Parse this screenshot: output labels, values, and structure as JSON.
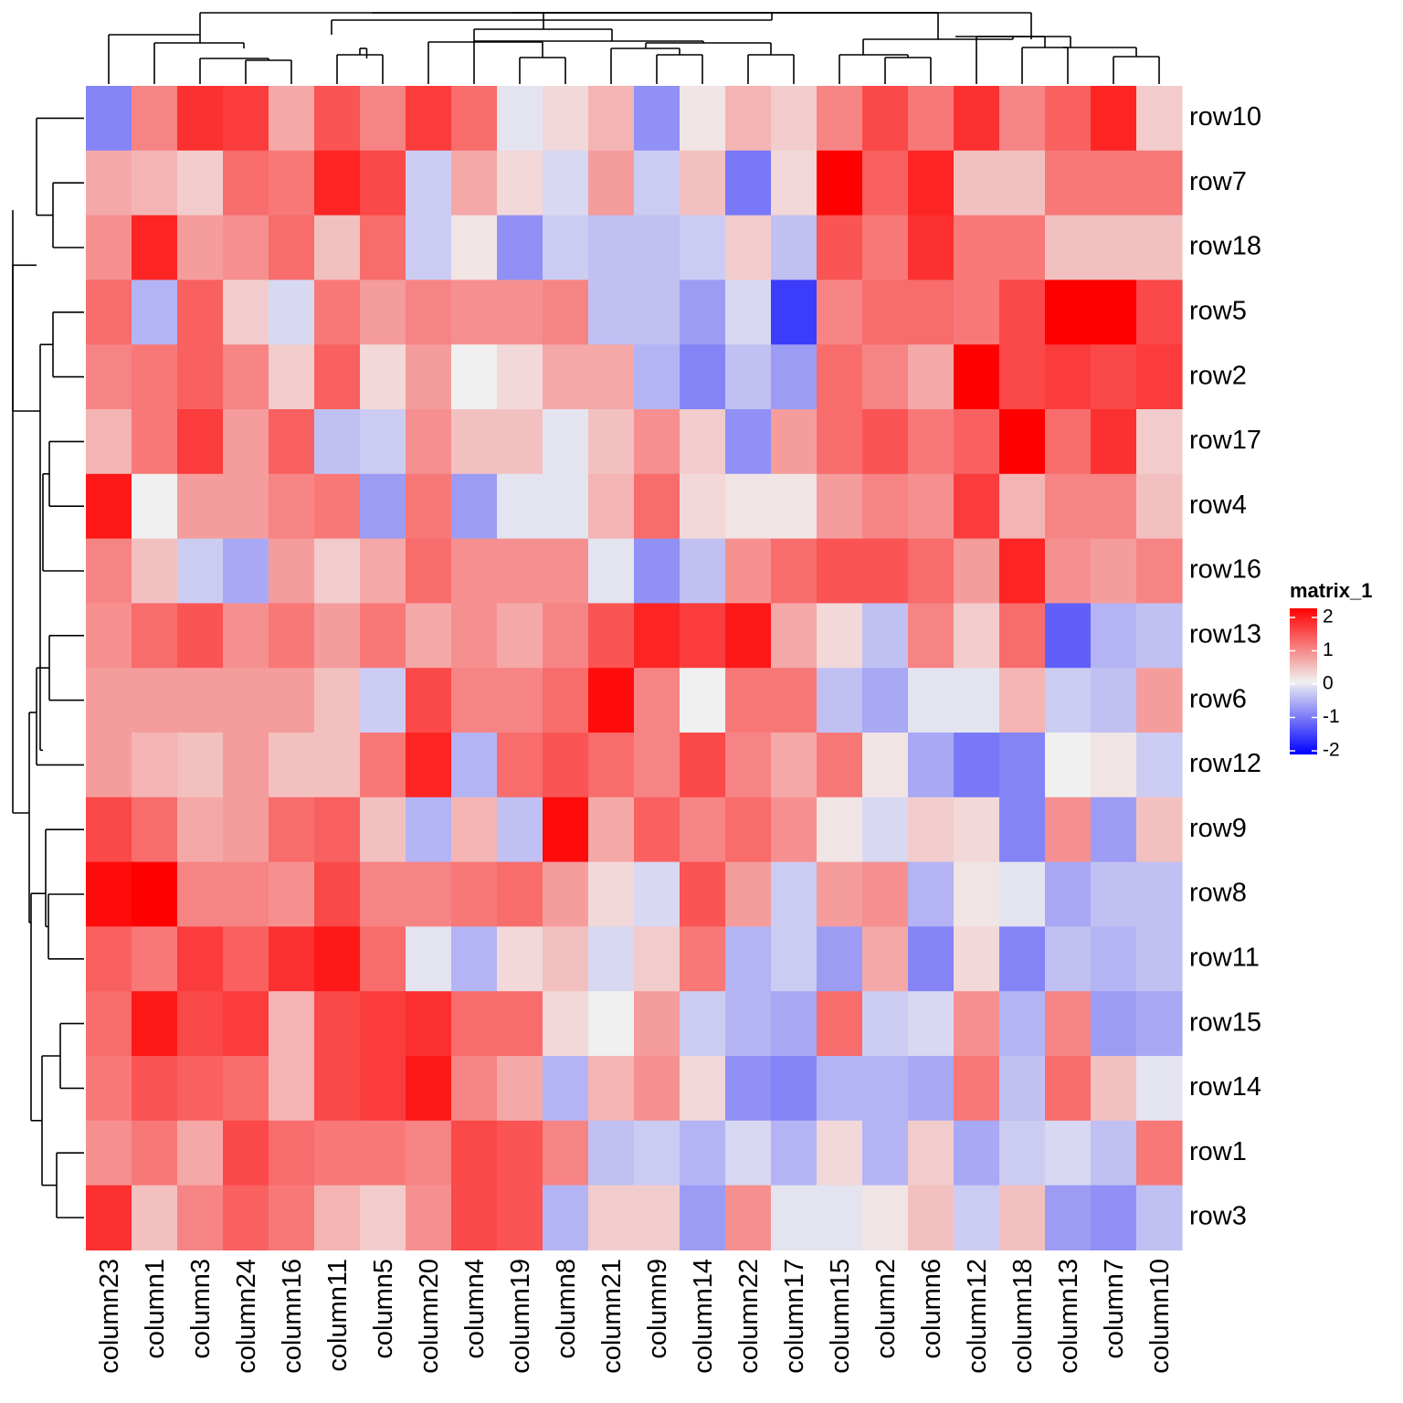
{
  "chart_data": {
    "type": "heatmap",
    "title": "",
    "columns": [
      "column23",
      "column1",
      "column3",
      "column24",
      "column16",
      "column11",
      "column5",
      "column20",
      "column4",
      "column19",
      "column8",
      "column21",
      "column9",
      "column14",
      "column22",
      "column17",
      "column15",
      "column2",
      "column6",
      "column12",
      "column18",
      "column13",
      "column7",
      "column10"
    ],
    "rows": [
      "row10",
      "row7",
      "row18",
      "row5",
      "row2",
      "row17",
      "row4",
      "row16",
      "row13",
      "row6",
      "row12",
      "row9",
      "row8",
      "row11",
      "row15",
      "row14",
      "row1",
      "row3"
    ],
    "values": [
      [
        -0.9,
        0.9,
        1.6,
        1.5,
        0.6,
        1.3,
        0.9,
        1.5,
        1.1,
        -0.1,
        0.2,
        0.5,
        -0.8,
        0.1,
        0.5,
        0.3,
        0.9,
        1.4,
        1.0,
        1.6,
        0.9,
        1.2,
        1.7,
        0.3
      ],
      [
        0.6,
        0.5,
        0.3,
        1.1,
        1.0,
        1.7,
        1.4,
        -0.3,
        0.6,
        0.2,
        -0.2,
        0.7,
        -0.3,
        0.4,
        -1.0,
        0.2,
        2.1,
        1.2,
        1.7,
        0.4,
        0.4,
        1.0,
        1.0,
        1.0
      ],
      [
        0.8,
        1.7,
        0.7,
        0.8,
        1.1,
        0.4,
        1.1,
        -0.3,
        0.1,
        -0.8,
        -0.3,
        -0.4,
        -0.4,
        -0.3,
        0.3,
        -0.4,
        1.3,
        1.0,
        1.6,
        1.0,
        1.0,
        0.4,
        0.4,
        0.4
      ],
      [
        1.1,
        -0.5,
        1.2,
        0.3,
        -0.2,
        1.0,
        0.7,
        0.9,
        0.8,
        0.8,
        0.9,
        -0.4,
        -0.4,
        -0.7,
        -0.2,
        -1.5,
        0.9,
        1.1,
        1.1,
        1.0,
        1.4,
        2.1,
        2.1,
        1.4
      ],
      [
        0.9,
        1.0,
        1.2,
        0.9,
        0.3,
        1.2,
        0.2,
        0.7,
        0.0,
        0.2,
        0.6,
        0.6,
        -0.5,
        -0.9,
        -0.4,
        -0.7,
        1.1,
        0.9,
        0.6,
        2.1,
        1.4,
        1.5,
        1.4,
        1.5
      ],
      [
        0.5,
        1.0,
        1.5,
        0.7,
        1.2,
        -0.4,
        -0.3,
        0.8,
        0.4,
        0.4,
        -0.1,
        0.4,
        0.8,
        0.3,
        -0.8,
        0.7,
        1.1,
        1.3,
        1.0,
        1.2,
        2.1,
        1.1,
        1.6,
        0.3
      ],
      [
        1.8,
        0.0,
        0.7,
        0.7,
        0.9,
        1.0,
        -0.7,
        1.0,
        -0.7,
        -0.1,
        -0.1,
        0.5,
        1.1,
        0.2,
        0.1,
        0.1,
        0.7,
        0.9,
        0.8,
        1.5,
        0.5,
        0.9,
        0.9,
        0.4
      ],
      [
        0.9,
        0.4,
        -0.3,
        -0.6,
        0.7,
        0.3,
        0.6,
        1.1,
        0.8,
        0.8,
        0.8,
        -0.1,
        -0.8,
        -0.4,
        0.8,
        1.1,
        1.3,
        1.3,
        1.1,
        0.7,
        1.7,
        0.8,
        0.7,
        0.9
      ],
      [
        0.8,
        1.1,
        1.3,
        0.8,
        1.0,
        0.7,
        1.0,
        0.6,
        0.8,
        0.6,
        0.9,
        1.3,
        1.7,
        1.5,
        1.8,
        0.6,
        0.2,
        -0.4,
        0.9,
        0.3,
        1.1,
        -1.2,
        -0.5,
        -0.4
      ],
      [
        0.7,
        0.7,
        0.7,
        0.7,
        0.7,
        0.4,
        -0.3,
        1.4,
        0.9,
        0.9,
        1.1,
        1.9,
        0.9,
        0.0,
        1.0,
        1.0,
        -0.4,
        -0.6,
        -0.1,
        -0.1,
        0.5,
        -0.3,
        -0.4,
        0.7
      ],
      [
        0.7,
        0.5,
        0.4,
        0.7,
        0.4,
        0.4,
        1.0,
        1.7,
        -0.5,
        1.1,
        1.3,
        1.1,
        0.9,
        1.4,
        0.9,
        0.6,
        1.0,
        0.1,
        -0.6,
        -1.0,
        -0.9,
        0.0,
        0.1,
        -0.3
      ],
      [
        1.4,
        1.1,
        0.6,
        0.7,
        1.1,
        1.2,
        0.4,
        -0.5,
        0.5,
        -0.4,
        1.9,
        0.6,
        1.2,
        0.9,
        1.1,
        0.8,
        0.1,
        -0.2,
        0.3,
        0.2,
        -0.9,
        0.8,
        -0.7,
        0.4
      ],
      [
        1.9,
        2.1,
        0.9,
        0.9,
        0.8,
        1.4,
        0.9,
        0.9,
        1.0,
        1.1,
        0.7,
        0.2,
        -0.2,
        1.3,
        0.7,
        -0.3,
        0.7,
        0.8,
        -0.5,
        0.1,
        -0.1,
        -0.6,
        -0.4,
        -0.4
      ],
      [
        1.2,
        1.0,
        1.5,
        1.2,
        1.6,
        1.8,
        1.1,
        -0.1,
        -0.5,
        0.2,
        0.4,
        -0.2,
        0.3,
        1.0,
        -0.5,
        -0.3,
        -0.7,
        0.6,
        -0.9,
        0.2,
        -0.9,
        -0.4,
        -0.5,
        -0.4
      ],
      [
        1.1,
        1.8,
        1.4,
        1.5,
        0.5,
        1.4,
        1.5,
        1.6,
        1.1,
        1.1,
        0.2,
        0.0,
        0.7,
        -0.3,
        -0.5,
        -0.6,
        1.1,
        -0.3,
        -0.2,
        0.8,
        -0.5,
        0.9,
        -0.7,
        -0.6
      ],
      [
        1.0,
        1.3,
        1.2,
        1.1,
        0.5,
        1.4,
        1.5,
        1.8,
        0.9,
        0.6,
        -0.5,
        0.5,
        0.8,
        0.2,
        -0.8,
        -0.9,
        -0.5,
        -0.5,
        -0.6,
        1.0,
        -0.4,
        1.1,
        0.4,
        -0.1
      ],
      [
        0.8,
        1.0,
        0.6,
        1.4,
        1.1,
        1.0,
        1.0,
        0.9,
        1.4,
        1.3,
        0.9,
        -0.4,
        -0.3,
        -0.5,
        -0.2,
        -0.5,
        0.2,
        -0.5,
        0.3,
        -0.6,
        -0.3,
        -0.2,
        -0.4,
        1.0
      ],
      [
        1.6,
        0.4,
        0.9,
        1.2,
        1.0,
        0.5,
        0.3,
        0.8,
        1.4,
        1.3,
        -0.5,
        0.3,
        0.3,
        -0.7,
        0.8,
        -0.1,
        -0.1,
        0.1,
        0.4,
        -0.3,
        0.4,
        -0.7,
        -0.8,
        -0.4
      ]
    ],
    "color_scale": {
      "name": "matrix_1",
      "low": "#0000ff",
      "mid": "#f0f0f0",
      "high": "#ff0000",
      "breaks": [
        -2,
        0,
        2
      ],
      "ticks": [
        "2",
        "1",
        "0",
        "-1",
        "-2"
      ]
    },
    "legend_position": "right",
    "row_dendrogram": "left",
    "column_dendrogram": "top"
  }
}
